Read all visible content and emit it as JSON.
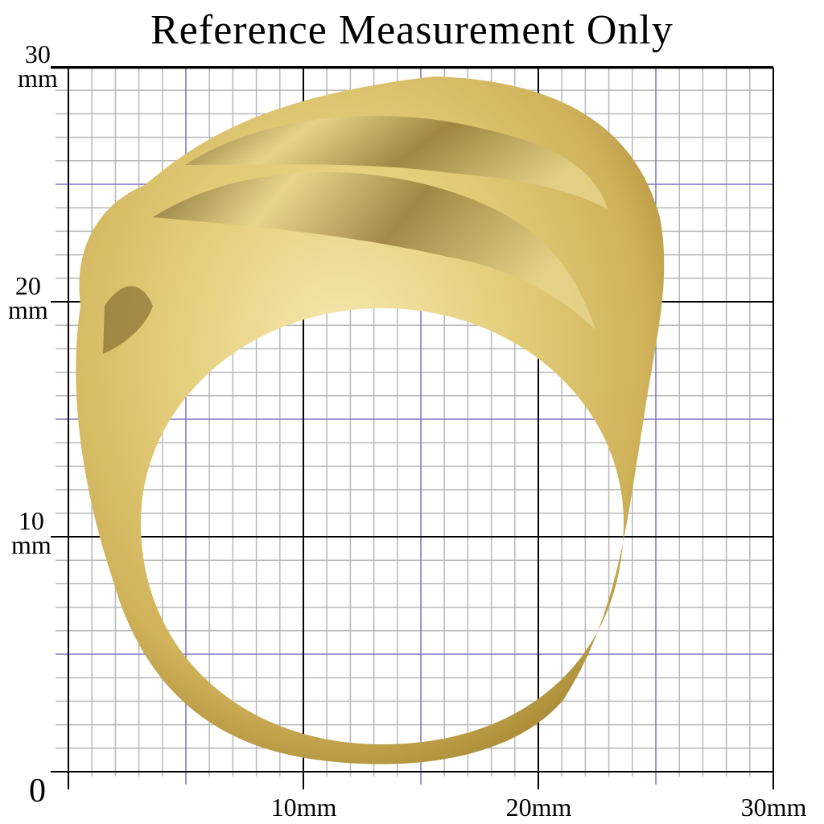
{
  "title": "Reference Measurement Only",
  "scale": {
    "unit": "mm",
    "range_mm": [
      0,
      30
    ],
    "minor_step_mm": 1,
    "mid_step_mm": 5,
    "major_step_mm": 10,
    "colors": {
      "minor": "#b8b8b8",
      "mid": "#7a74c4",
      "major": "#000000"
    }
  },
  "y_labels": [
    {
      "value": "30",
      "unit": "mm"
    },
    {
      "value": "20",
      "unit": "mm"
    },
    {
      "value": "10",
      "unit": "mm"
    },
    {
      "value": "0",
      "unit": ""
    }
  ],
  "x_labels": [
    "10mm",
    "20mm",
    "30mm"
  ],
  "product": {
    "subject": "hammered gold-tone dome ring",
    "color": "#d9c067"
  }
}
